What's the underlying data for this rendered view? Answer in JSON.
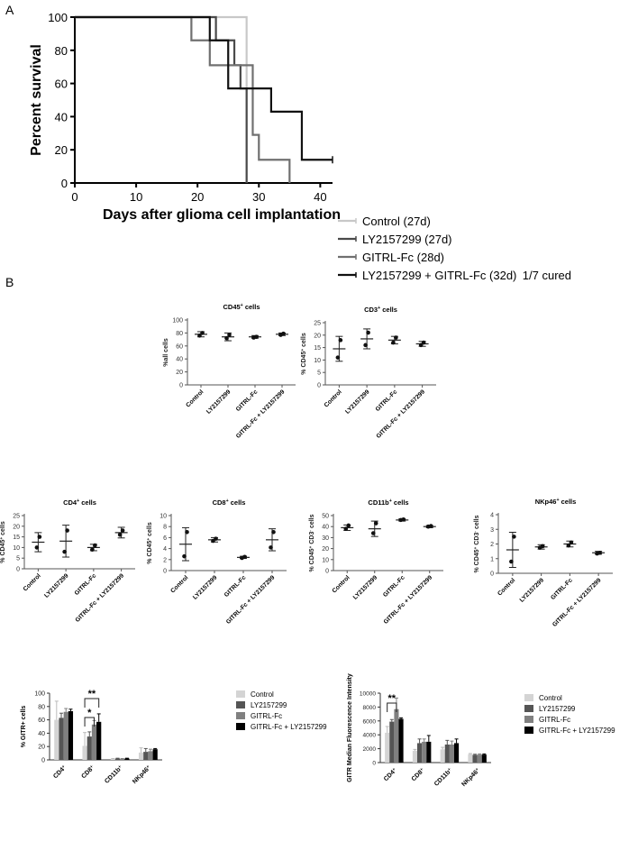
{
  "panel_labels": {
    "a": "A",
    "b": "B"
  },
  "colors": {
    "control": "#c8c8c8",
    "ly": "#4a4a4a",
    "gitrl": "#707070",
    "combo": "#111111",
    "bar_control": "#d4d4d4",
    "bar_ly": "#555555",
    "bar_gitrl": "#808080",
    "bar_combo": "#000000"
  },
  "chart_data": [
    {
      "id": "survival",
      "type": "line",
      "step": true,
      "ylabel": "Percent survival",
      "xlabel": "Days after glioma cell implantation",
      "xlim": [
        0,
        42
      ],
      "ylim": [
        0,
        100
      ],
      "xticks": [
        0,
        10,
        20,
        30,
        40
      ],
      "yticks": [
        0,
        20,
        40,
        60,
        80,
        100
      ],
      "legend": "right",
      "series": [
        {
          "name": "Control (27d)",
          "color": "#c8c8c8",
          "x": [
            0,
            24,
            28,
            28
          ],
          "y": [
            100,
            100,
            0,
            0
          ]
        },
        {
          "name": "LY2157299  (27d)",
          "color": "#4a4a4a",
          "x": [
            0,
            23,
            26,
            27,
            28
          ],
          "y": [
            100,
            86,
            71,
            57,
            0
          ]
        },
        {
          "name": "GITRL-Fc (28d)",
          "color": "#707070",
          "x": [
            0,
            19,
            22,
            25,
            28,
            29,
            30,
            35
          ],
          "y": [
            100,
            86,
            71,
            71,
            71,
            29,
            14,
            0
          ]
        },
        {
          "name": "LY2157299 + GITRL-Fc (32d)",
          "color": "#111111",
          "x": [
            0,
            22,
            25,
            28,
            32,
            37,
            42
          ],
          "y": [
            100,
            86,
            57,
            57,
            43,
            14,
            14
          ]
        }
      ],
      "annotation": "1/7 cured"
    },
    {
      "id": "cd45",
      "type": "scatter",
      "title": "CD45",
      "title_sup": "+",
      "title_suffix": " cells",
      "ylabel": "%all cells",
      "ylim": [
        0,
        100
      ],
      "yticks": [
        0,
        20,
        40,
        60,
        80,
        100
      ],
      "categories": [
        "Control",
        "LY2157299",
        "GITRL-Fc",
        "GITRL-Fc + LY2157299"
      ],
      "means": [
        78,
        74,
        74,
        78
      ],
      "sd": [
        4,
        6,
        2,
        2
      ],
      "points": [
        [
          76,
          80
        ],
        [
          72,
          77
        ],
        [
          73,
          74
        ],
        [
          77,
          79
        ]
      ]
    },
    {
      "id": "cd3",
      "type": "scatter",
      "title": "CD3",
      "title_sup": "+",
      "title_suffix": " cells",
      "ylabel": "% CD45",
      "ylabel_sup": "+",
      "ylabel_suffix": " cells",
      "ylim": [
        0,
        25
      ],
      "yticks": [
        0,
        5,
        10,
        15,
        20,
        25
      ],
      "categories": [
        "Control",
        "LY2157299",
        "GITRL-Fc",
        "GITRL-Fc + LY2157299"
      ],
      "means": [
        14.5,
        18.5,
        18,
        16.5
      ],
      "sd": [
        5,
        4,
        1.5,
        1
      ],
      "points": [
        [
          11,
          18
        ],
        [
          16,
          21
        ],
        [
          17,
          19
        ],
        [
          16,
          17
        ]
      ]
    },
    {
      "id": "cd4",
      "type": "scatter",
      "title": "CD4",
      "title_sup": "+",
      "title_suffix": " cells",
      "ylabel": "% CD45",
      "ylabel_sup": "+",
      "ylabel_suffix": " cells",
      "ylim": [
        0,
        25
      ],
      "yticks": [
        0,
        5,
        10,
        15,
        20,
        25
      ],
      "categories": [
        "Control",
        "LY2157299",
        "GITRL-Fc",
        "GITRL-Fc + LY2157299"
      ],
      "means": [
        12.5,
        13,
        10,
        17
      ],
      "sd": [
        4.5,
        7.5,
        1.5,
        2.5
      ],
      "points": [
        [
          10,
          15
        ],
        [
          8,
          18
        ],
        [
          9,
          11
        ],
        [
          16,
          18
        ]
      ]
    },
    {
      "id": "cd8",
      "type": "scatter",
      "title": "CD8",
      "title_sup": "+",
      "title_suffix": " cells",
      "ylabel": "% CD45",
      "ylabel_sup": "+",
      "ylabel_suffix": " cells",
      "ylim": [
        0,
        10
      ],
      "yticks": [
        0,
        2,
        4,
        6,
        8,
        10
      ],
      "categories": [
        "Control",
        "LY2157299",
        "GITRL-Fc",
        "GITRL-Fc + LY2157299"
      ],
      "means": [
        4.8,
        5.6,
        2.4,
        5.6
      ],
      "sd": [
        3,
        0.4,
        0.2,
        2
      ],
      "points": [
        [
          2.6,
          7
        ],
        [
          5.4,
          5.8
        ],
        [
          2.3,
          2.5
        ],
        [
          4.2,
          7
        ]
      ]
    },
    {
      "id": "cd11b",
      "type": "scatter",
      "title": "CD11b",
      "title_sup": "+",
      "title_suffix": " cells",
      "ylabel": "% CD45",
      "ylabel_sup": "+",
      "ylabel_suffix": " CD3",
      "ylabel_sup2": "-",
      "ylabel_suffix2": " cells",
      "ylim": [
        0,
        50
      ],
      "yticks": [
        0,
        10,
        20,
        30,
        40,
        50
      ],
      "categories": [
        "Control",
        "LY2157299",
        "GITRL-Fc",
        "GITRL-Fc + LY2157299"
      ],
      "means": [
        39,
        38,
        46,
        40
      ],
      "sd": [
        2.5,
        7,
        1,
        1
      ],
      "points": [
        [
          38,
          41
        ],
        [
          34,
          43
        ],
        [
          46,
          46.5
        ],
        [
          40,
          40.5
        ]
      ]
    },
    {
      "id": "nkp46",
      "type": "scatter",
      "title": "NKp46",
      "title_sup": "+",
      "title_suffix": " cells",
      "ylabel": "% CD45",
      "ylabel_sup": "+",
      "ylabel_suffix": " CD3",
      "ylabel_sup2": "-",
      "ylabel_suffix2": " cells",
      "ylim": [
        0,
        4
      ],
      "yticks": [
        0,
        1,
        2,
        3,
        4
      ],
      "categories": [
        "Control",
        "LY2157299",
        "GITRL-Fc",
        "GITRL-Fc + LY2157299"
      ],
      "means": [
        1.6,
        1.8,
        2.0,
        1.4
      ],
      "sd": [
        1.2,
        0.15,
        0.2,
        0.1
      ],
      "points": [
        [
          0.8,
          2.5
        ],
        [
          1.75,
          1.85
        ],
        [
          1.9,
          2.1
        ],
        [
          1.35,
          1.4
        ]
      ]
    },
    {
      "id": "gitr_pct",
      "type": "bar",
      "ylabel": "% GITR+ cells",
      "ylim": [
        0,
        100
      ],
      "yticks": [
        0,
        20,
        40,
        60,
        80,
        100
      ],
      "groups": [
        "CD4",
        "CD8",
        "CD11b",
        "NKp46"
      ],
      "group_sup": "+",
      "series": [
        {
          "name": "Control",
          "color": "#d4d4d4",
          "values": [
            60,
            21,
            1.5,
            11
          ],
          "err": [
            28,
            20,
            0.5,
            7
          ]
        },
        {
          "name": "LY2157299",
          "color": "#555555",
          "values": [
            63,
            35,
            2,
            12
          ],
          "err": [
            7,
            7,
            0.5,
            5
          ]
        },
        {
          "name": "GITRL-Fc",
          "color": "#808080",
          "values": [
            72,
            53,
            1.5,
            13
          ],
          "err": [
            5,
            6,
            0.5,
            3
          ]
        },
        {
          "name": "GITRL-Fc + LY2157299",
          "color": "#000000",
          "values": [
            73,
            57,
            2,
            16
          ],
          "err": [
            3,
            12,
            0.5,
            1
          ]
        }
      ],
      "significance": [
        {
          "group": 1,
          "from": 0,
          "to": 2,
          "label": "*"
        },
        {
          "group": 1,
          "from": 0,
          "to": 3,
          "label": "**"
        }
      ]
    },
    {
      "id": "gitr_mfi",
      "type": "bar",
      "ylabel": "GITR Median Fluorescence Intensity",
      "ylim": [
        0,
        10000
      ],
      "yticks": [
        0,
        2000,
        4000,
        6000,
        8000,
        10000
      ],
      "groups": [
        "CD4",
        "CD8",
        "CD11b",
        "NKp46"
      ],
      "group_sup": "+",
      "series": [
        {
          "name": "Control",
          "color": "#d4d4d4",
          "values": [
            4300,
            1700,
            1900,
            1200
          ],
          "err": [
            900,
            200,
            300,
            100
          ]
        },
        {
          "name": "LY2157299",
          "color": "#555555",
          "values": [
            5900,
            2800,
            2600,
            1100
          ],
          "err": [
            300,
            600,
            600,
            100
          ]
        },
        {
          "name": "GITRL-Fc",
          "color": "#808080",
          "values": [
            7700,
            3000,
            2600,
            1150
          ],
          "err": [
            1600,
            400,
            500,
            100
          ]
        },
        {
          "name": "GITRL-Fc + LY2157299",
          "color": "#000000",
          "values": [
            6300,
            3000,
            2800,
            1150
          ],
          "err": [
            150,
            900,
            600,
            100
          ]
        }
      ],
      "significance": [
        {
          "group": 0,
          "from": 0,
          "to": 2,
          "label": "**"
        }
      ]
    }
  ]
}
